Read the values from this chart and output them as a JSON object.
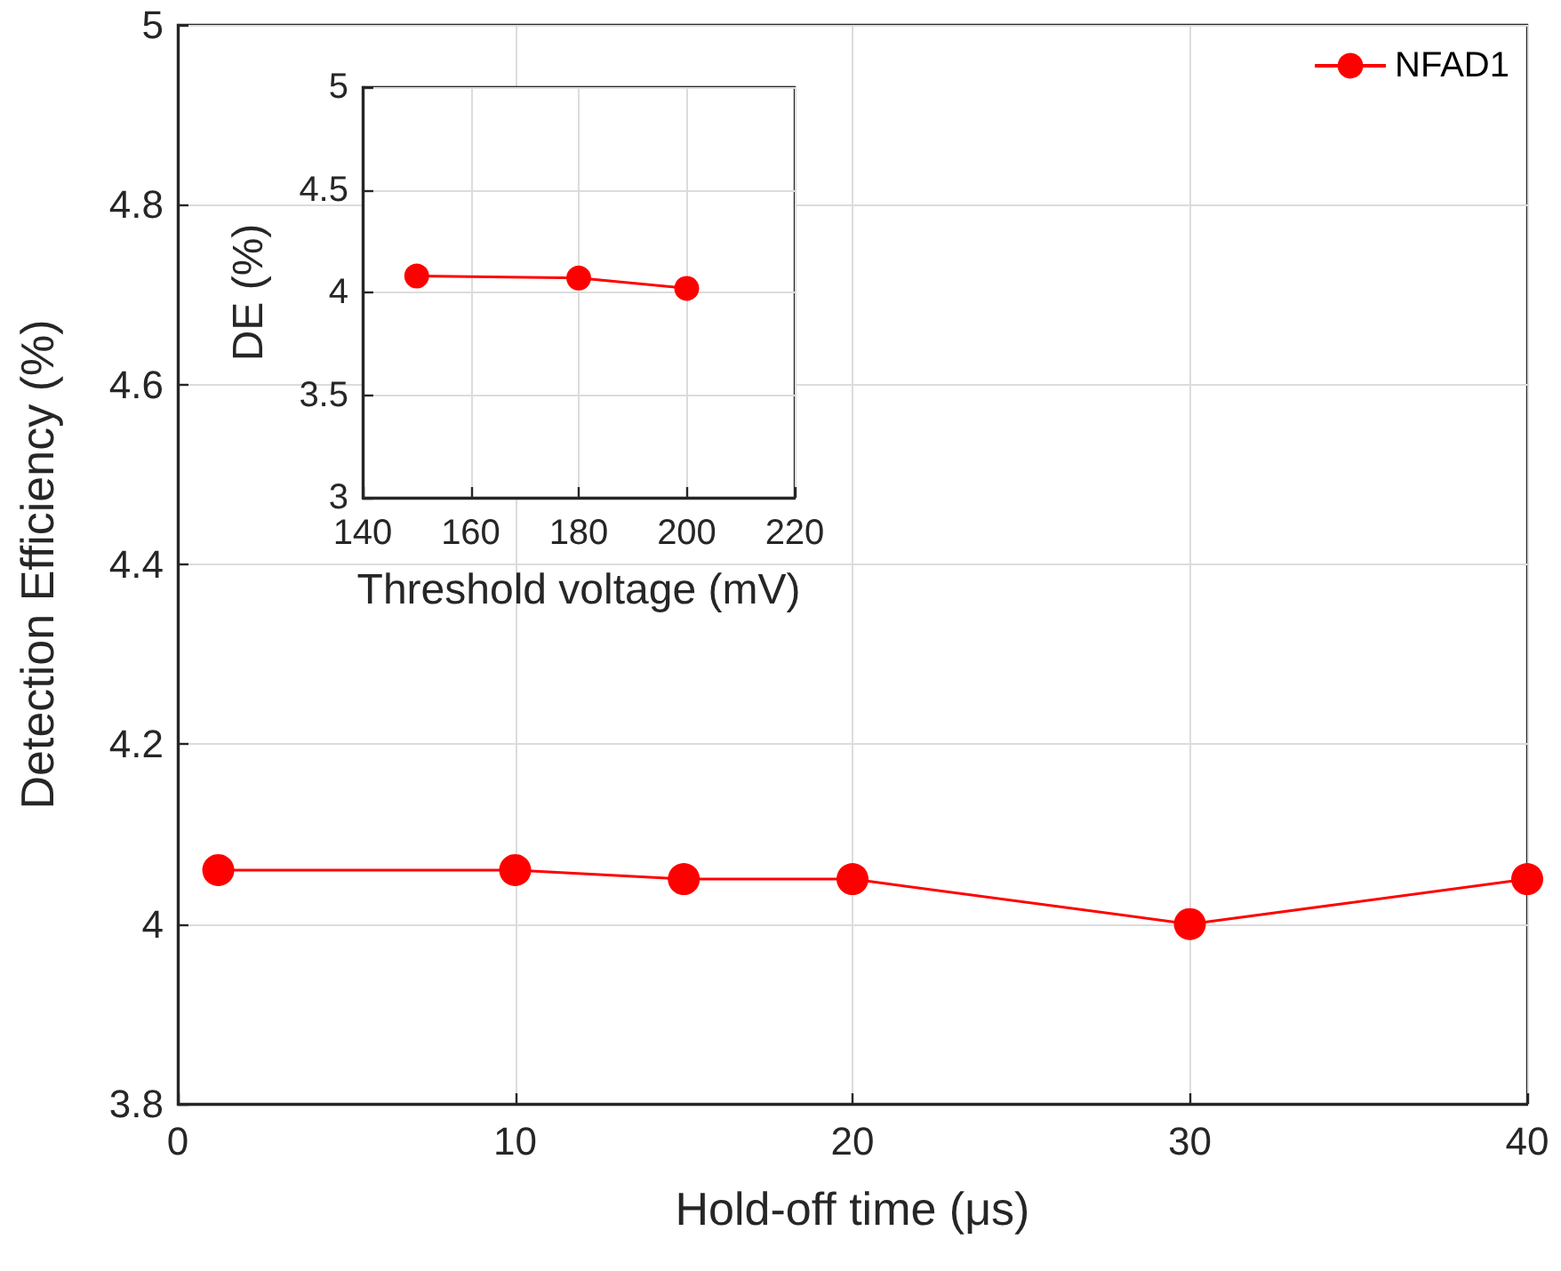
{
  "chart_data": [
    {
      "type": "line",
      "xlabel": "Hold-off time (μs)",
      "ylabel": "Detection Efficiency (%)",
      "x": [
        1.2,
        10,
        15,
        20,
        30,
        40
      ],
      "xlim": [
        0,
        40
      ],
      "xticks": [
        0,
        10,
        20,
        30,
        40
      ],
      "ylim": [
        3.8,
        5
      ],
      "yticks": [
        3.8,
        4,
        4.2,
        4.4,
        4.6,
        4.8,
        5
      ],
      "grid": true,
      "legend": "top right",
      "marker": "circle",
      "line_style": "solid",
      "series": [
        {
          "name": "NFAD1",
          "color": "#ff0000",
          "values": [
            4.06,
            4.06,
            4.05,
            4.05,
            4.0,
            4.05
          ]
        }
      ]
    },
    {
      "type": "line",
      "xlabel": "Threshold voltage (mV)",
      "ylabel": "DE (%)",
      "x": [
        150,
        180,
        200
      ],
      "xlim": [
        140,
        220
      ],
      "xticks": [
        140,
        160,
        180,
        200,
        220
      ],
      "ylim": [
        3,
        5
      ],
      "yticks": [
        3,
        3.5,
        4,
        4.5,
        5
      ],
      "grid": true,
      "marker": "circle",
      "line_style": "solid",
      "series": [
        {
          "color": "#ff0000",
          "values": [
            4.08,
            4.07,
            4.02
          ]
        }
      ]
    }
  ]
}
